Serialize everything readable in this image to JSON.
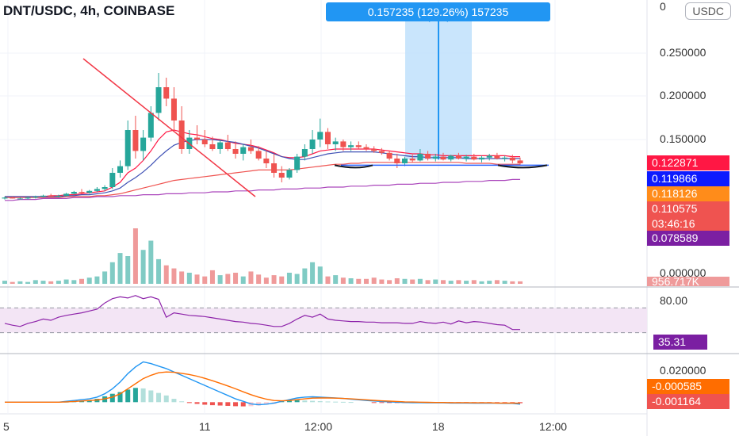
{
  "header": {
    "title": "DNT/USDC, 4h, COINBASE",
    "currency_badge": "USDC"
  },
  "measure_tooltip": "0.157235 (129.26%) 157235",
  "price_axis": {
    "ticks": [
      "0.250000",
      "0.200000",
      "0.150000",
      "0.000000"
    ],
    "top_partial": "0"
  },
  "price_tags": [
    {
      "label": "0.122871",
      "color": "#ff1744"
    },
    {
      "label": "0.119866",
      "color": "#0d1bff"
    },
    {
      "label": "0.118126",
      "color": "#ff8c1a"
    },
    {
      "label": "0.110575",
      "color": "#ef5350"
    },
    {
      "label": "03:46:16",
      "color": "#ef5350"
    },
    {
      "label": "0.078589",
      "color": "#7b1fa2"
    },
    {
      "label": "956.717K",
      "color": "#ef9a9a"
    }
  ],
  "rsi": {
    "tick": "80.00",
    "value_tag": "35.31",
    "tag_color": "#7b1fa2"
  },
  "macd": {
    "tick": "0.020000",
    "tags": [
      {
        "label": "-0.000585",
        "color": "#ff6d00"
      },
      {
        "label": "-0.001164",
        "color": "#ef5350"
      }
    ]
  },
  "time_axis": [
    "5",
    "11",
    "12:00",
    "18",
    "12:00"
  ],
  "colors": {
    "up": "#26a69a",
    "down": "#ef5350",
    "measure_fill": "#bbdefb",
    "measure_line": "#2196f3"
  },
  "chart_data": [
    {
      "type": "candlestick",
      "title": "DNT/USDC, 4h, COINBASE",
      "ylim": [
        0,
        0.28
      ],
      "annotation": "0.157235 (129.26%) 157235",
      "ohlc": [
        [
          0.078,
          0.08,
          0.077,
          0.079
        ],
        [
          0.079,
          0.08,
          0.078,
          0.078
        ],
        [
          0.078,
          0.079,
          0.077,
          0.078
        ],
        [
          0.078,
          0.08,
          0.077,
          0.079
        ],
        [
          0.079,
          0.081,
          0.078,
          0.08
        ],
        [
          0.08,
          0.082,
          0.079,
          0.081
        ],
        [
          0.081,
          0.083,
          0.08,
          0.08
        ],
        [
          0.08,
          0.082,
          0.079,
          0.081
        ],
        [
          0.081,
          0.084,
          0.08,
          0.083
        ],
        [
          0.083,
          0.086,
          0.082,
          0.085
        ],
        [
          0.085,
          0.088,
          0.083,
          0.084
        ],
        [
          0.084,
          0.087,
          0.083,
          0.086
        ],
        [
          0.086,
          0.09,
          0.085,
          0.088
        ],
        [
          0.088,
          0.092,
          0.086,
          0.09
        ],
        [
          0.09,
          0.11,
          0.088,
          0.105
        ],
        [
          0.105,
          0.118,
          0.1,
          0.112
        ],
        [
          0.112,
          0.16,
          0.108,
          0.15
        ],
        [
          0.15,
          0.165,
          0.12,
          0.128
        ],
        [
          0.128,
          0.15,
          0.118,
          0.142
        ],
        [
          0.142,
          0.175,
          0.138,
          0.168
        ],
        [
          0.168,
          0.21,
          0.16,
          0.195
        ],
        [
          0.195,
          0.205,
          0.175,
          0.183
        ],
        [
          0.183,
          0.195,
          0.15,
          0.16
        ],
        [
          0.16,
          0.175,
          0.125,
          0.13
        ],
        [
          0.13,
          0.15,
          0.125,
          0.142
        ],
        [
          0.142,
          0.155,
          0.135,
          0.14
        ],
        [
          0.14,
          0.15,
          0.132,
          0.135
        ],
        [
          0.135,
          0.143,
          0.128,
          0.13
        ],
        [
          0.13,
          0.14,
          0.125,
          0.137
        ],
        [
          0.137,
          0.145,
          0.128,
          0.13
        ],
        [
          0.13,
          0.138,
          0.12,
          0.125
        ],
        [
          0.125,
          0.135,
          0.118,
          0.132
        ],
        [
          0.132,
          0.14,
          0.125,
          0.128
        ],
        [
          0.128,
          0.133,
          0.118,
          0.12
        ],
        [
          0.12,
          0.128,
          0.11,
          0.115
        ],
        [
          0.115,
          0.125,
          0.1,
          0.105
        ],
        [
          0.105,
          0.112,
          0.095,
          0.1
        ],
        [
          0.1,
          0.11,
          0.098,
          0.108
        ],
        [
          0.108,
          0.125,
          0.105,
          0.122
        ],
        [
          0.122,
          0.135,
          0.118,
          0.13
        ],
        [
          0.13,
          0.15,
          0.125,
          0.14
        ],
        [
          0.14,
          0.162,
          0.132,
          0.148
        ],
        [
          0.148,
          0.152,
          0.13,
          0.135
        ],
        [
          0.135,
          0.142,
          0.128,
          0.138
        ],
        [
          0.138,
          0.14,
          0.128,
          0.132
        ],
        [
          0.132,
          0.138,
          0.128,
          0.134
        ],
        [
          0.134,
          0.138,
          0.13,
          0.132
        ],
        [
          0.132,
          0.135,
          0.128,
          0.13
        ],
        [
          0.13,
          0.133,
          0.126,
          0.128
        ],
        [
          0.128,
          0.131,
          0.124,
          0.126
        ],
        [
          0.126,
          0.128,
          0.118,
          0.12
        ],
        [
          0.12,
          0.125,
          0.11,
          0.115
        ],
        [
          0.115,
          0.122,
          0.112,
          0.12
        ],
        [
          0.12,
          0.124,
          0.116,
          0.118
        ],
        [
          0.118,
          0.13,
          0.117,
          0.125
        ],
        [
          0.125,
          0.128,
          0.118,
          0.12
        ],
        [
          0.12,
          0.125,
          0.117,
          0.122
        ],
        [
          0.122,
          0.126,
          0.118,
          0.119
        ],
        [
          0.119,
          0.124,
          0.117,
          0.123
        ],
        [
          0.123,
          0.126,
          0.119,
          0.12
        ],
        [
          0.12,
          0.124,
          0.117,
          0.122
        ],
        [
          0.122,
          0.125,
          0.118,
          0.119
        ],
        [
          0.119,
          0.123,
          0.116,
          0.121
        ],
        [
          0.121,
          0.125,
          0.118,
          0.123
        ],
        [
          0.123,
          0.126,
          0.119,
          0.12
        ],
        [
          0.12,
          0.123,
          0.117,
          0.121
        ],
        [
          0.121,
          0.124,
          0.115,
          0.118
        ],
        [
          0.118,
          0.121,
          0.113,
          0.115
        ]
      ],
      "volume": [
        5,
        3,
        4,
        3,
        6,
        5,
        4,
        5,
        7,
        6,
        8,
        10,
        12,
        20,
        35,
        50,
        45,
        90,
        55,
        70,
        40,
        30,
        25,
        20,
        18,
        15,
        12,
        22,
        14,
        16,
        18,
        12,
        20,
        15,
        10,
        14,
        12,
        18,
        16,
        25,
        35,
        28,
        12,
        14,
        10,
        9,
        8,
        8,
        10,
        7,
        6,
        9,
        8,
        7,
        8,
        6,
        7,
        6,
        5,
        6,
        5,
        6,
        4,
        5,
        6,
        5,
        4,
        4
      ],
      "overlays": [
        {
          "name": "",
          "color": "#ff1744",
          "values": [
            0.08,
            0.08,
            0.08,
            0.08,
            0.08,
            0.08,
            0.081,
            0.081,
            0.082,
            0.082,
            0.083,
            0.084,
            0.085,
            0.086,
            0.09,
            0.095,
            0.105,
            0.11,
            0.118,
            0.128,
            0.14,
            0.148,
            0.15,
            0.148,
            0.146,
            0.145,
            0.143,
            0.141,
            0.14,
            0.138,
            0.136,
            0.135,
            0.134,
            0.132,
            0.129,
            0.126,
            0.122,
            0.121,
            0.121,
            0.122,
            0.125,
            0.128,
            0.129,
            0.13,
            0.13,
            0.13,
            0.13,
            0.13,
            0.13,
            0.129,
            0.128,
            0.127,
            0.126,
            0.125,
            0.125,
            0.124,
            0.124,
            0.123,
            0.123,
            0.123,
            0.123,
            0.123,
            0.123,
            0.123,
            0.123,
            0.123,
            0.122,
            0.122
          ]
        },
        {
          "name": "",
          "color": "#3f51b5",
          "values": [
            0.08,
            0.08,
            0.08,
            0.08,
            0.08,
            0.08,
            0.08,
            0.08,
            0.081,
            0.081,
            0.082,
            0.082,
            0.083,
            0.084,
            0.086,
            0.089,
            0.095,
            0.1,
            0.106,
            0.113,
            0.121,
            0.128,
            0.134,
            0.137,
            0.139,
            0.14,
            0.14,
            0.14,
            0.139,
            0.138,
            0.137,
            0.135,
            0.133,
            0.131,
            0.128,
            0.125,
            0.122,
            0.12,
            0.119,
            0.119,
            0.121,
            0.123,
            0.125,
            0.126,
            0.127,
            0.127,
            0.127,
            0.127,
            0.127,
            0.126,
            0.125,
            0.124,
            0.123,
            0.122,
            0.122,
            0.121,
            0.121,
            0.121,
            0.121,
            0.121,
            0.12,
            0.12,
            0.12,
            0.12,
            0.12,
            0.12,
            0.12,
            0.12
          ]
        },
        {
          "name": "",
          "color": "#ef5350",
          "values": [
            0.079,
            0.079,
            0.079,
            0.079,
            0.079,
            0.079,
            0.079,
            0.079,
            0.08,
            0.08,
            0.08,
            0.08,
            0.081,
            0.081,
            0.082,
            0.083,
            0.085,
            0.087,
            0.089,
            0.091,
            0.093,
            0.095,
            0.097,
            0.098,
            0.099,
            0.1,
            0.101,
            0.102,
            0.103,
            0.104,
            0.105,
            0.106,
            0.107,
            0.108,
            0.108,
            0.108,
            0.108,
            0.108,
            0.109,
            0.11,
            0.111,
            0.112,
            0.113,
            0.114,
            0.114,
            0.115,
            0.115,
            0.116,
            0.116,
            0.116,
            0.116,
            0.116,
            0.116,
            0.116,
            0.116,
            0.116,
            0.116,
            0.116,
            0.116,
            0.116,
            0.115,
            0.115,
            0.115,
            0.115,
            0.114,
            0.114,
            0.114,
            0.114
          ]
        },
        {
          "name": "",
          "color": "#ab47bc",
          "values": [
            0.076,
            0.076,
            0.077,
            0.077,
            0.077,
            0.078,
            0.078,
            0.078,
            0.078,
            0.079,
            0.079,
            0.079,
            0.08,
            0.08,
            0.08,
            0.081,
            0.081,
            0.081,
            0.082,
            0.082,
            0.082,
            0.083,
            0.083,
            0.083,
            0.084,
            0.084,
            0.084,
            0.085,
            0.085,
            0.085,
            0.086,
            0.086,
            0.086,
            0.087,
            0.087,
            0.087,
            0.088,
            0.088,
            0.088,
            0.089,
            0.089,
            0.089,
            0.09,
            0.09,
            0.09,
            0.091,
            0.091,
            0.091,
            0.092,
            0.092,
            0.092,
            0.093,
            0.093,
            0.093,
            0.094,
            0.094,
            0.094,
            0.095,
            0.095,
            0.095,
            0.096,
            0.096,
            0.096,
            0.097,
            0.097,
            0.097,
            0.098,
            0.098
          ]
        }
      ]
    },
    {
      "type": "line",
      "ylim": [
        0,
        100
      ],
      "levels": [
        70,
        30
      ],
      "series": [
        {
          "name": "",
          "color": "#8e24aa",
          "values": [
            45,
            42,
            40,
            45,
            48,
            52,
            50,
            55,
            58,
            60,
            62,
            65,
            68,
            78,
            85,
            88,
            86,
            90,
            85,
            88,
            84,
            55,
            62,
            60,
            58,
            57,
            56,
            54,
            52,
            50,
            48,
            47,
            45,
            44,
            42,
            40,
            40,
            45,
            52,
            58,
            55,
            60,
            52,
            50,
            49,
            48,
            48,
            47,
            47,
            46,
            46,
            46,
            45,
            45,
            48,
            46,
            45,
            47,
            44,
            49,
            46,
            48,
            47,
            45,
            43,
            42,
            35,
            35
          ]
        }
      ]
    },
    {
      "type": "bar+line",
      "ylim": [
        -0.006,
        0.028
      ],
      "histogram": [
        0,
        0,
        0,
        0,
        0,
        0,
        0,
        0,
        0.0003,
        0.0005,
        0.0008,
        0.0012,
        0.002,
        0.0035,
        0.005,
        0.006,
        0.0075,
        0.0085,
        0.0082,
        0.007,
        0.0055,
        0.004,
        0.002,
        0.0005,
        -0.0005,
        -0.001,
        -0.0015,
        -0.0018,
        -0.002,
        -0.0022,
        -0.0024,
        -0.0025,
        -0.0024,
        -0.002,
        -0.0015,
        -0.001,
        0.0005,
        0.001,
        0.0012,
        0.001,
        0.0008,
        0.0006,
        0.0004,
        0.0003,
        0.0002,
        0.0001,
        0,
        0,
        -0.0001,
        -0.0002,
        -0.0002,
        -0.0003,
        -0.0003,
        -0.0003,
        -0.0003,
        -0.0003,
        -0.0003,
        -0.0004,
        -0.0004,
        -0.0004,
        -0.0004,
        -0.0005,
        -0.0005,
        -0.0005,
        -0.0005,
        -0.0006,
        -0.0006,
        -0.0006
      ],
      "series": [
        {
          "name": "",
          "color": "#2196f3",
          "values": [
            0,
            0,
            0,
            0,
            0,
            0,
            0,
            0,
            0.0005,
            0.001,
            0.0015,
            0.002,
            0.003,
            0.005,
            0.008,
            0.012,
            0.017,
            0.021,
            0.024,
            0.023,
            0.0215,
            0.02,
            0.018,
            0.016,
            0.014,
            0.012,
            0.01,
            0.008,
            0.006,
            0.004,
            0.002,
            0.0005,
            -0.001,
            -0.0015,
            -0.0012,
            -0.0005,
            0.0005,
            0.0015,
            0.0025,
            0.003,
            0.0032,
            0.003,
            0.0028,
            0.0025,
            0.0022,
            0.0018,
            0.0014,
            0.001,
            0.0007,
            0.0004,
            0.0002,
            0,
            -0.0002,
            -0.0003,
            -0.0003,
            -0.0004,
            -0.0004,
            -0.0004,
            -0.0005,
            -0.0005,
            -0.0005,
            -0.0006,
            -0.0006,
            -0.0006,
            -0.0006,
            -0.0007,
            -0.0007,
            -0.0012
          ]
        },
        {
          "name": "",
          "color": "#ff6d00",
          "values": [
            0,
            0,
            0,
            0,
            0,
            0,
            0,
            0,
            0.0002,
            0.0004,
            0.0007,
            0.001,
            0.0013,
            0.002,
            0.003,
            0.005,
            0.008,
            0.011,
            0.014,
            0.016,
            0.0175,
            0.018,
            0.0178,
            0.0172,
            0.0165,
            0.0155,
            0.0142,
            0.0128,
            0.0113,
            0.0097,
            0.008,
            0.0062,
            0.0045,
            0.003,
            0.0018,
            0.001,
            0.0008,
            0.001,
            0.0015,
            0.002,
            0.0024,
            0.0025,
            0.0025,
            0.0024,
            0.0022,
            0.002,
            0.0017,
            0.0014,
            0.0011,
            0.0008,
            0.0006,
            0.0004,
            0.0002,
            0.0001,
            0,
            -0.0001,
            -0.0002,
            -0.0002,
            -0.0003,
            -0.0003,
            -0.0003,
            -0.0004,
            -0.0004,
            -0.0004,
            -0.0005,
            -0.0005,
            -0.0005,
            -0.0006
          ]
        }
      ]
    }
  ]
}
